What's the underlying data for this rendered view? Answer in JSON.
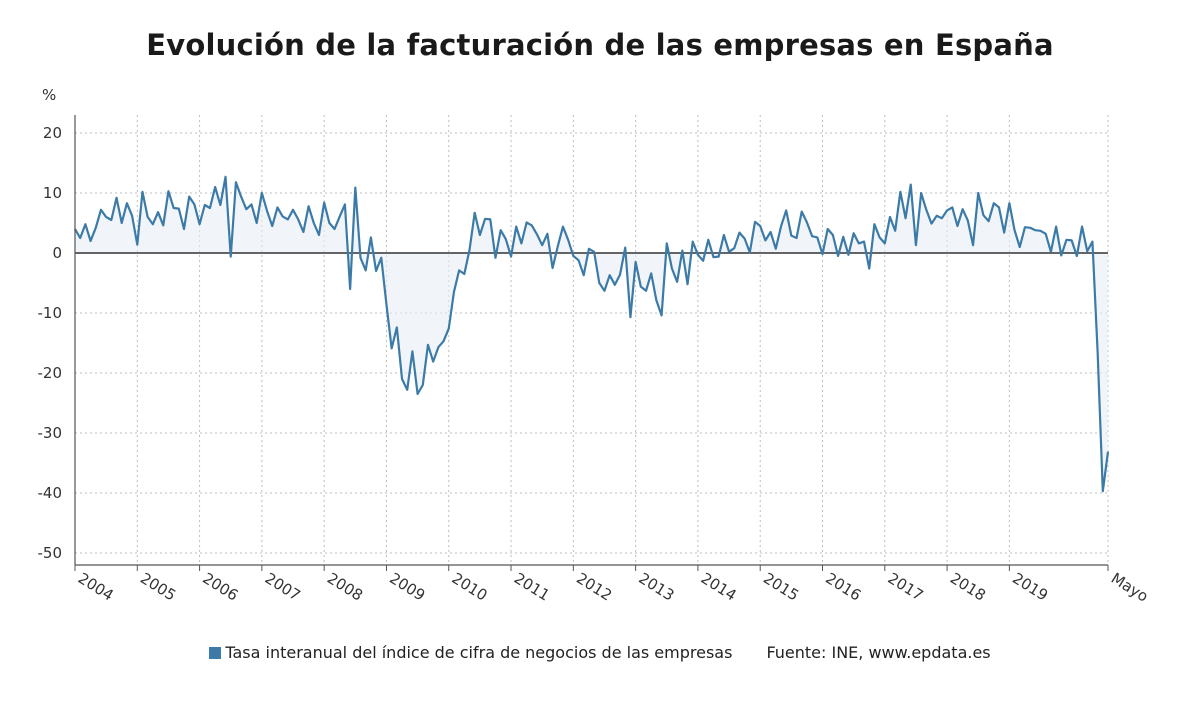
{
  "chart_data": {
    "type": "area",
    "title": "Evolución de la facturación de las empresas en España",
    "ylabel": "%",
    "ylim": [
      -52,
      23
    ],
    "yticks": [
      20,
      10,
      0,
      -10,
      -20,
      -30,
      -40,
      -50
    ],
    "grid": true,
    "legend_placement": "bottom",
    "series_color": "#3c7aa8",
    "x_tick_labels": [
      "2004",
      "2005",
      "2006",
      "2007",
      "2008",
      "2009",
      "2010",
      "2011",
      "2012",
      "2013",
      "2014",
      "2015",
      "2016",
      "2017",
      "2018",
      "2019",
      "Mayo"
    ],
    "series": [
      {
        "name": "Tasa interanual del índice de cifra de negocios de las empresas",
        "start": "2004-01",
        "frequency": "monthly",
        "values": [
          4.0,
          2.5,
          4.8,
          2.0,
          4.2,
          7.2,
          6.0,
          5.5,
          9.2,
          5.0,
          8.3,
          6.2,
          1.4,
          10.2,
          6.0,
          4.8,
          6.8,
          4.6,
          10.3,
          7.5,
          7.4,
          4.0,
          9.4,
          8.1,
          4.8,
          8.0,
          7.5,
          11.0,
          8.0,
          12.7,
          -0.6,
          11.8,
          9.4,
          7.3,
          8.1,
          5.0,
          10.0,
          7.0,
          4.5,
          7.6,
          6.1,
          5.6,
          7.2,
          5.6,
          3.5,
          7.8,
          5.0,
          3.0,
          8.4,
          5.0,
          4.0,
          6.1,
          8.1,
          -6.0,
          10.9,
          -0.8,
          -2.9,
          2.6,
          -3.0,
          -0.8,
          -8.6,
          -15.9,
          -12.4,
          -21.0,
          -22.8,
          -16.4,
          -23.5,
          -22.0,
          -15.3,
          -18.1,
          -15.7,
          -14.7,
          -12.6,
          -6.5,
          -2.9,
          -3.5,
          0.5,
          6.7,
          3.0,
          5.7,
          5.6,
          -0.8,
          3.8,
          2.3,
          -0.6,
          4.4,
          1.6,
          5.1,
          4.6,
          3.1,
          1.3,
          3.2,
          -2.5,
          1.1,
          4.4,
          2.2,
          -0.5,
          -1.2,
          -3.7,
          0.7,
          0.2,
          -5.0,
          -6.3,
          -3.7,
          -5.3,
          -3.6,
          0.9,
          -10.7,
          -1.5,
          -5.6,
          -6.3,
          -3.4,
          -7.9,
          -10.4,
          1.6,
          -2.6,
          -4.8,
          0.4,
          -5.2,
          1.9,
          -0.3,
          -1.3,
          2.2,
          -0.7,
          -0.6,
          3.0,
          0.2,
          0.8,
          3.4,
          2.4,
          0.1,
          5.2,
          4.5,
          2.1,
          3.5,
          0.7,
          4.4,
          7.1,
          2.9,
          2.5,
          6.9,
          5.1,
          2.8,
          2.6,
          -0.2,
          4.0,
          3.0,
          -0.5,
          2.7,
          -0.3,
          3.3,
          1.6,
          1.9,
          -2.6,
          4.8,
          2.6,
          1.6,
          6.0,
          3.7,
          10.2,
          5.8,
          11.4,
          1.3,
          10.0,
          7.2,
          4.9,
          6.2,
          5.8,
          7.1,
          7.6,
          4.5,
          7.3,
          5.4,
          1.3,
          10.0,
          6.3,
          5.3,
          8.3,
          7.6,
          3.4,
          8.3,
          3.8,
          1.0,
          4.3,
          4.2,
          3.8,
          3.7,
          3.2,
          0.2,
          4.4,
          -0.4,
          2.2,
          2.1,
          -0.5,
          4.4,
          0.3,
          1.9,
          -16.5,
          -39.7,
          -33.1
        ]
      }
    ],
    "source": "Fuente: INE, www.epdata.es"
  }
}
